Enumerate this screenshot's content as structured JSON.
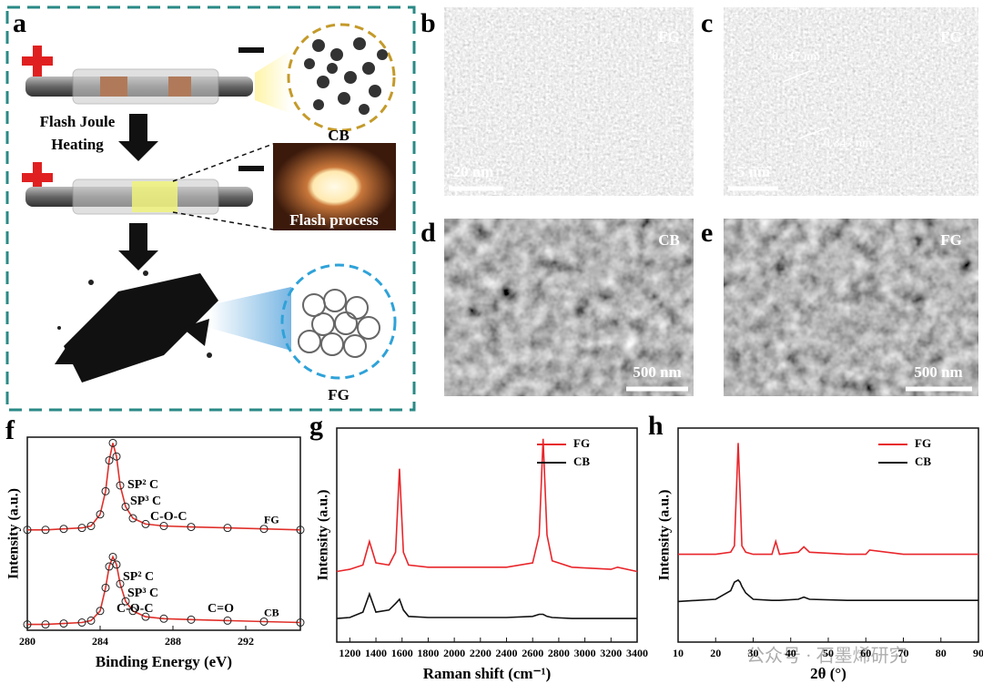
{
  "panel_labels": [
    "a",
    "b",
    "c",
    "d",
    "e",
    "f",
    "g",
    "h"
  ],
  "schematic": {
    "step_label": [
      "Flash Joule",
      "Heating"
    ],
    "precursor": "CB",
    "flash_label": "Flash process",
    "product": "FG"
  },
  "micrographs": [
    {
      "sample": "FG",
      "scale_bar": "20 nm"
    },
    {
      "sample": "FG",
      "scale_bar": "5 nm",
      "lattice_spacings": [
        "0.347 nm",
        "0.347 nm"
      ]
    },
    {
      "sample": "CB",
      "scale_bar": "500 nm"
    },
    {
      "sample": "FG",
      "scale_bar": "500 nm"
    }
  ],
  "chart_data": [
    {
      "type": "line",
      "xlabel": "Binding Energy (eV)",
      "ylabel": "Intensity (a.u.)",
      "legend": "inline",
      "xlim": [
        280,
        295
      ],
      "xticks": [
        280,
        284,
        288,
        292
      ],
      "ylim": [
        0,
        100
      ],
      "x": [
        280,
        281,
        282,
        283,
        283.5,
        284,
        284.3,
        284.5,
        284.7,
        284.9,
        285.1,
        285.4,
        285.8,
        286.5,
        287.5,
        289,
        291,
        293,
        295
      ],
      "series": [
        {
          "name": "FG",
          "color": "#e0302a",
          "marker": "circle",
          "values": [
            52,
            52,
            52.5,
            53,
            54,
            60,
            72,
            88,
            97,
            90,
            75,
            64,
            58,
            55,
            54,
            53.5,
            53,
            52.5,
            52
          ]
        },
        {
          "name": "CB",
          "color": "#e0302a",
          "marker": "circle",
          "values": [
            3,
            3,
            3.5,
            4,
            5,
            10,
            22,
            33,
            38,
            34,
            24,
            15,
            10,
            7,
            6,
            5.5,
            5,
            4.5,
            4
          ]
        }
      ],
      "annotations": [
        [
          "SP² C",
          "SP³ C",
          "C-O-C"
        ],
        [
          "SP² C",
          "SP³ C",
          "C-O-C",
          "C=O"
        ]
      ]
    },
    {
      "type": "line",
      "xlabel": "Raman shift (cm⁻¹)",
      "ylabel": "Intensity (a.u.)",
      "legend": "upper right",
      "xlim": [
        1100,
        3400
      ],
      "xticks": [
        1200,
        1400,
        1600,
        1800,
        2000,
        2200,
        2400,
        2600,
        2800,
        3000,
        3200,
        3400
      ],
      "ylim": [
        0,
        100
      ],
      "x": [
        1100,
        1200,
        1300,
        1350,
        1400,
        1500,
        1550,
        1580,
        1610,
        1650,
        1800,
        2000,
        2400,
        2600,
        2650,
        2680,
        2710,
        2750,
        2900,
        3200,
        3250,
        3400
      ],
      "series": [
        {
          "name": "FG",
          "color": "#e8262b",
          "values": [
            33,
            34,
            36,
            47,
            37,
            36,
            42,
            81,
            42,
            36,
            35,
            35,
            35,
            37,
            50,
            95,
            50,
            38,
            35,
            34,
            35,
            33
          ]
        },
        {
          "name": "CB",
          "color": "#111111",
          "values": [
            11,
            11.5,
            14,
            22.5,
            14,
            15,
            18,
            20,
            15,
            12,
            11.5,
            11.5,
            11.5,
            12,
            13,
            13,
            12,
            11.5,
            11,
            11,
            11,
            11
          ]
        }
      ]
    },
    {
      "type": "line",
      "xlabel": "2θ (°)",
      "ylabel": "Intensity (a.u.)",
      "legend": "upper right",
      "xlim": [
        10,
        90
      ],
      "xticks": [
        10,
        20,
        30,
        40,
        50,
        60,
        70,
        80,
        90
      ],
      "ylim": [
        0,
        100
      ],
      "x": [
        10,
        20,
        24,
        25,
        26,
        26.5,
        27,
        28,
        30,
        35,
        36,
        37,
        42,
        43.5,
        45,
        55,
        60,
        61,
        70,
        90
      ],
      "series": [
        {
          "name": "FG",
          "color": "#e8262b",
          "values": [
            41,
            41,
            42,
            45,
            93,
            70,
            45,
            42,
            41,
            41,
            47,
            41,
            42,
            44.5,
            42,
            41,
            41,
            43,
            41,
            41
          ]
        },
        {
          "name": "CB",
          "color": "#111111",
          "values": [
            19,
            20,
            24,
            28,
            29,
            28,
            26,
            23,
            20,
            19.5,
            19.5,
            19.5,
            20,
            21,
            20,
            19.5,
            19.5,
            19.5,
            19.5,
            19.5
          ]
        }
      ]
    }
  ],
  "watermark": "公众号 · 石墨烯研究"
}
